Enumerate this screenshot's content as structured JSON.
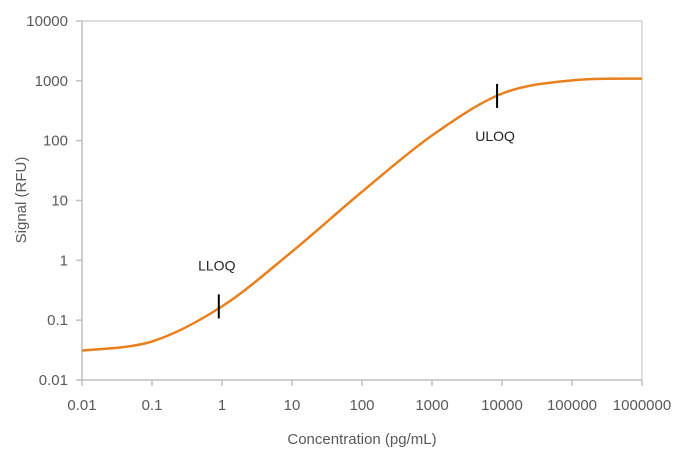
{
  "chart_data": {
    "type": "line",
    "title": "",
    "xlabel": "Concentration (pg/mL)",
    "ylabel": "Signal (RFU)",
    "x_scale": "log",
    "y_scale": "log",
    "xlim": [
      0.01,
      1000000
    ],
    "ylim": [
      0.01,
      10000
    ],
    "x_ticks": [
      "0.01",
      "0.1",
      "1",
      "10",
      "100",
      "1000",
      "10000",
      "100000",
      "1000000"
    ],
    "y_ticks": [
      "0.01",
      "0.1",
      "1",
      "10",
      "100",
      "1000",
      "10000"
    ],
    "grid": false,
    "legend": "none",
    "series": [
      {
        "color": "#E8801E",
        "x": [
          0.01,
          0.1,
          1,
          10,
          100,
          1000,
          10000,
          100000,
          1000000
        ],
        "y": [
          0.031,
          0.044,
          0.17,
          1.4,
          14,
          122,
          611,
          1019,
          1091
        ]
      }
    ],
    "annotations": [
      {
        "label": "LLOQ",
        "x": 0.9,
        "y": 0.17,
        "label_position": "above"
      },
      {
        "label": "ULOQ",
        "x": 8500,
        "y": 560,
        "label_position": "below"
      }
    ],
    "axis_color": "#BFBFBF",
    "text_color": "#595959",
    "marker_color": "#000000"
  }
}
